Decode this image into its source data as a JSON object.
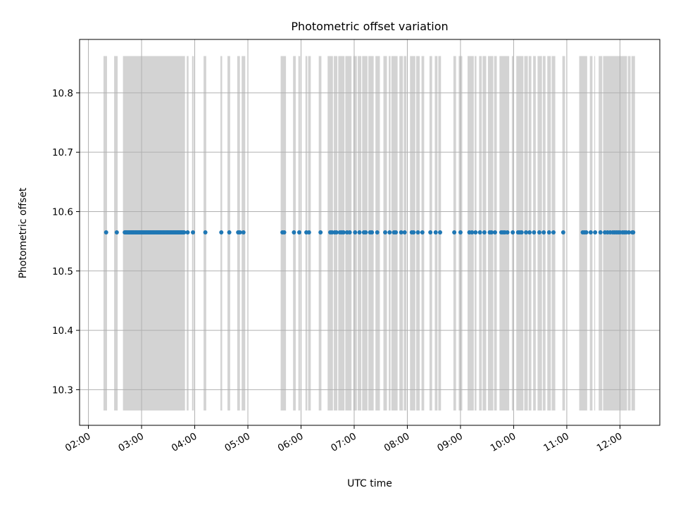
{
  "chart_data": {
    "type": "scatter",
    "title": "Photometric offset variation",
    "xlabel": "UTC time",
    "ylabel": "Photometric offset",
    "x_ticks": [
      "02:00",
      "03:00",
      "04:00",
      "05:00",
      "06:00",
      "07:00",
      "08:00",
      "09:00",
      "10:00",
      "11:00",
      "12:00"
    ],
    "y_ticks": [
      "10.3",
      "10.4",
      "10.5",
      "10.6",
      "10.7",
      "10.8"
    ],
    "y_tick_values": [
      10.3,
      10.4,
      10.5,
      10.6,
      10.7,
      10.8
    ],
    "xlim": [
      "01:50",
      "12:45"
    ],
    "ylim": [
      10.24,
      10.89
    ],
    "grid": true,
    "span_ylim": [
      10.265,
      10.862
    ],
    "span_color": "#d3d3d3",
    "point_color": "#1f77b4",
    "bands": [
      [
        "02:17",
        "02:21"
      ],
      [
        "02:29",
        "02:33"
      ],
      [
        "02:39",
        "03:49"
      ],
      [
        "03:51",
        "03:53"
      ],
      [
        "03:57",
        "03:59"
      ],
      [
        "04:10",
        "04:13"
      ],
      [
        "04:29",
        "04:31"
      ],
      [
        "04:37",
        "04:40"
      ],
      [
        "04:48",
        "04:51"
      ],
      [
        "04:53",
        "04:57"
      ],
      [
        "05:37",
        "05:43"
      ],
      [
        "05:51",
        "05:54"
      ],
      [
        "05:57",
        "05:59"
      ],
      [
        "06:05",
        "06:07"
      ],
      [
        "06:08",
        "06:11"
      ],
      [
        "06:20",
        "06:23"
      ],
      [
        "06:30",
        "06:36"
      ],
      [
        "06:37",
        "06:41"
      ],
      [
        "06:42",
        "06:49"
      ],
      [
        "06:50",
        "06:57"
      ],
      [
        "06:59",
        "07:03"
      ],
      [
        "07:04",
        "07:08"
      ],
      [
        "07:09",
        "07:15"
      ],
      [
        "07:16",
        "07:22"
      ],
      [
        "07:24",
        "07:29"
      ],
      [
        "07:33",
        "07:37"
      ],
      [
        "07:39",
        "07:41"
      ],
      [
        "07:42",
        "07:49"
      ],
      [
        "07:51",
        "07:55"
      ],
      [
        "07:56",
        "07:59"
      ],
      [
        "08:03",
        "08:09"
      ],
      [
        "08:10",
        "08:14"
      ],
      [
        "08:16",
        "08:19"
      ],
      [
        "08:25",
        "08:28"
      ],
      [
        "08:31",
        "08:34"
      ],
      [
        "08:35",
        "08:38"
      ],
      [
        "08:52",
        "08:55"
      ],
      [
        "08:58",
        "09:02"
      ],
      [
        "09:08",
        "09:15"
      ],
      [
        "09:16",
        "09:18"
      ],
      [
        "09:21",
        "09:24"
      ],
      [
        "09:25",
        "09:29"
      ],
      [
        "09:31",
        "09:37"
      ],
      [
        "09:38",
        "09:41"
      ],
      [
        "09:44",
        "09:55"
      ],
      [
        "09:58",
        "10:00"
      ],
      [
        "10:03",
        "10:11"
      ],
      [
        "10:12",
        "10:16"
      ],
      [
        "10:17",
        "10:20"
      ],
      [
        "10:22",
        "10:25"
      ],
      [
        "10:27",
        "10:32"
      ],
      [
        "10:33",
        "10:36"
      ],
      [
        "10:38",
        "10:42"
      ],
      [
        "10:43",
        "10:47"
      ],
      [
        "10:55",
        "10:58"
      ],
      [
        "11:14",
        "11:23"
      ],
      [
        "11:26",
        "11:29"
      ],
      [
        "11:31",
        "11:32"
      ],
      [
        "11:36",
        "11:40"
      ],
      [
        "11:41",
        "12:08"
      ],
      [
        "12:09",
        "12:12"
      ],
      [
        "12:13",
        "12:17"
      ]
    ],
    "points": {
      "y": 10.565,
      "x": [
        "02:20",
        "02:32",
        "02:41",
        "02:42",
        "02:43",
        "02:44",
        "02:45",
        "02:46",
        "02:47",
        "02:48",
        "02:49",
        "02:50",
        "02:51",
        "02:52",
        "02:53",
        "02:54",
        "02:55",
        "02:56",
        "02:57",
        "02:58",
        "02:59",
        "03:00",
        "03:01",
        "03:02",
        "03:03",
        "03:04",
        "03:05",
        "03:06",
        "03:07",
        "03:08",
        "03:09",
        "03:10",
        "03:11",
        "03:12",
        "03:13",
        "03:14",
        "03:15",
        "03:16",
        "03:17",
        "03:18",
        "03:19",
        "03:20",
        "03:21",
        "03:22",
        "03:23",
        "03:24",
        "03:25",
        "03:26",
        "03:27",
        "03:28",
        "03:29",
        "03:30",
        "03:31",
        "03:32",
        "03:33",
        "03:34",
        "03:35",
        "03:36",
        "03:37",
        "03:38",
        "03:39",
        "03:40",
        "03:41",
        "03:42",
        "03:43",
        "03:44",
        "03:45",
        "03:46",
        "03:47",
        "03:48",
        "03:52",
        "03:58",
        "04:12",
        "04:30",
        "04:39",
        "04:49",
        "04:51",
        "04:55",
        "05:39",
        "05:41",
        "05:52",
        "05:58",
        "06:06",
        "06:09",
        "06:22",
        "06:33",
        "06:35",
        "06:38",
        "06:40",
        "06:44",
        "06:46",
        "06:48",
        "06:52",
        "06:55",
        "07:01",
        "07:06",
        "07:11",
        "07:13",
        "07:18",
        "07:20",
        "07:26",
        "07:35",
        "07:40",
        "07:45",
        "07:47",
        "07:53",
        "07:57",
        "08:05",
        "08:07",
        "08:12",
        "08:17",
        "08:26",
        "08:32",
        "08:37",
        "08:53",
        "09:00",
        "09:10",
        "09:13",
        "09:17",
        "09:22",
        "09:27",
        "09:33",
        "09:35",
        "09:39",
        "09:46",
        "09:48",
        "09:50",
        "09:53",
        "09:59",
        "10:05",
        "10:07",
        "10:09",
        "10:14",
        "10:18",
        "10:23",
        "10:29",
        "10:34",
        "10:40",
        "10:45",
        "10:56",
        "11:18",
        "11:20",
        "11:22",
        "11:27",
        "11:32",
        "11:38",
        "11:43",
        "11:46",
        "11:49",
        "11:52",
        "11:54",
        "11:56",
        "11:58",
        "12:00",
        "12:03",
        "12:05",
        "12:07",
        "12:10",
        "12:14",
        "12:15"
      ]
    }
  }
}
